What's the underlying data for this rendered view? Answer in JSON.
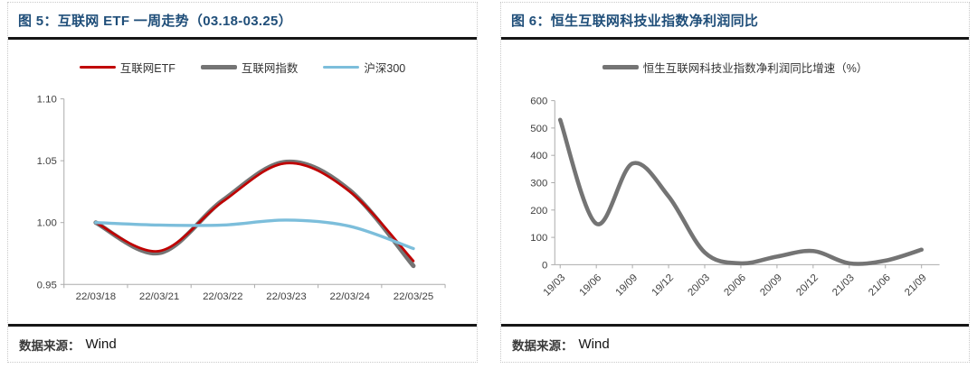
{
  "figures": [
    {
      "title": "图 5：互联网 ETF 一周走势（03.18-03.25）",
      "source": {
        "label": "数据来源：",
        "value": "Wind"
      }
    },
    {
      "title": "图 6：恒生互联网科技业指数净利润同比",
      "source": {
        "label": "数据来源：",
        "value": "Wind"
      }
    }
  ],
  "colors": {
    "title_navy": "#1F4E79",
    "divider_black": "#161616",
    "axis_gray": "#ABABAB",
    "tick_label_gray": "#3F3F3F",
    "etf_red": "#C00000",
    "index_gray": "#747474",
    "hs300_blue": "#7CBEDB"
  },
  "chart_data": [
    {
      "type": "line",
      "title": "互联网 ETF 一周走势（03.18-03.25）",
      "categories": [
        "22/03/18",
        "22/03/21",
        "22/03/22",
        "22/03/23",
        "22/03/24",
        "22/03/25"
      ],
      "series": [
        {
          "name": "互联网指数",
          "color": "#747474",
          "width": 5,
          "values": [
            1.0,
            0.9755,
            1.018,
            1.049,
            1.026,
            0.965
          ]
        },
        {
          "name": "互联网ETF",
          "color": "#C00000",
          "width": 2.7,
          "values": [
            1.0,
            0.977,
            1.017,
            1.048,
            1.025,
            0.969
          ]
        },
        {
          "name": "沪深300",
          "color": "#7CBEDB",
          "width": 3.4,
          "values": [
            1.0,
            0.998,
            0.998,
            1.002,
            0.997,
            0.979
          ]
        }
      ],
      "legend_order": [
        "互联网ETF",
        "互联网指数",
        "沪深300"
      ],
      "ylim": [
        0.95,
        1.1
      ],
      "yticks": [
        {
          "v": 0.95,
          "label": "0.95"
        },
        {
          "v": 1.0,
          "label": "1.00"
        },
        {
          "v": 1.05,
          "label": "1.05"
        },
        {
          "v": 1.1,
          "label": "1.10"
        }
      ],
      "grid": false,
      "legend_position": "top",
      "xlabel": "",
      "ylabel": ""
    },
    {
      "type": "line",
      "title": "恒生互联网科技业指数净利润同比",
      "categories": [
        "19/03",
        "19/06",
        "19/09",
        "19/12",
        "20/03",
        "20/06",
        "20/09",
        "20/12",
        "21/03",
        "21/06",
        "21/09"
      ],
      "series": [
        {
          "name": "恒生互联网科技业指数净利润同比增速（%）",
          "color": "#747474",
          "width": 4.6,
          "values": [
            530,
            150,
            370,
            250,
            45,
            5,
            30,
            50,
            5,
            15,
            55
          ]
        }
      ],
      "legend_order": [
        "恒生互联网科技业指数净利润同比增速（%）"
      ],
      "ylim": [
        0,
        600
      ],
      "yticks": [
        {
          "v": 0,
          "label": "0"
        },
        {
          "v": 100,
          "label": "100"
        },
        {
          "v": 200,
          "label": "200"
        },
        {
          "v": 300,
          "label": "300"
        },
        {
          "v": 400,
          "label": "400"
        },
        {
          "v": 500,
          "label": "500"
        },
        {
          "v": 600,
          "label": "600"
        }
      ],
      "grid": false,
      "legend_position": "top",
      "x_label_rotation": -45,
      "xlabel": "",
      "ylabel": ""
    }
  ]
}
